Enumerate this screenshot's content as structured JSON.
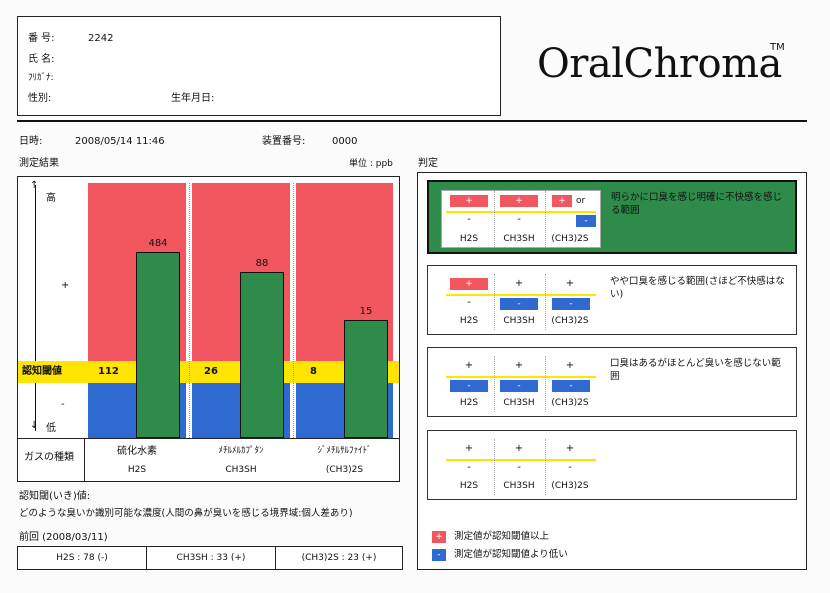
{
  "patient": {
    "id_label": "番 号:",
    "id_value": "2242",
    "name_label": "氏 名:",
    "furigana_label": "ﾌﾘｶﾞﾅ:",
    "sex_label": "性別:",
    "birth_label": "生年月日:"
  },
  "brand": {
    "name": "OralChroma",
    "tm": "TM"
  },
  "meta": {
    "datetime_label": "日時:",
    "datetime_value": "2008/05/14 11:46",
    "device_label": "装置番号:",
    "device_value": "0000"
  },
  "results": {
    "title": "測定結果",
    "unit": "単位 : ppb",
    "axis_high": "高",
    "axis_plus": "+",
    "axis_minus": "-",
    "axis_low": "低",
    "threshold_label": "認知閾値",
    "gas_type_label": "ガスの種類",
    "gases": [
      {
        "name_ja": "硫化水素",
        "name": "H2S",
        "threshold": 112,
        "value": 484
      },
      {
        "name_ja": "ﾒﾁﾙﾒﾙｶﾌﾟﾀﾝ",
        "name": "CH3SH",
        "threshold": 26,
        "value": 88
      },
      {
        "name_ja": "ｼﾞﾒﾁﾙｻﾙﾌｧｲﾄﾞ",
        "name": "(CH3)2S",
        "threshold": 8,
        "value": 15
      }
    ]
  },
  "chart_data": {
    "type": "bar",
    "categories": [
      "H2S",
      "CH3SH",
      "(CH3)2S"
    ],
    "series": [
      {
        "name": "",
        "values": [
          484,
          88,
          15
        ]
      }
    ],
    "thresholds": [
      112,
      26,
      8
    ],
    "title": "測定結果",
    "ylabel": "",
    "unit": "単位 : ppb",
    "grid": false
  },
  "note": {
    "title": "認知閾(いき)値:",
    "body": "どのような臭いか識別可能な濃度(人間の鼻が臭いを感じる境界域:個人差あり)"
  },
  "previous": {
    "title": "前回 (2008/03/11)",
    "items": [
      "H2S : 78 (-)",
      "CH3SH : 33 (+)",
      "(CH3)2S : 23 (+)"
    ]
  },
  "judgement": {
    "title": "判定",
    "plus": "+",
    "minus": "-",
    "or": "or",
    "gas_labels": [
      "H2S",
      "CH3SH",
      "(CH3)2S"
    ],
    "levels": [
      {
        "text": "明らかに口臭を感じ明確に不快感を感じる範囲",
        "pattern": [
          "+",
          "+",
          "+/-"
        ],
        "selected": true
      },
      {
        "text": "やや口臭を感じる範囲(さほど不快感はない)",
        "pattern": [
          "+",
          "-",
          "-"
        ],
        "selected": false
      },
      {
        "text": "口臭はあるがほとんど臭いを感じない範囲",
        "pattern": [
          "-",
          "-",
          "-"
        ],
        "selected": false
      },
      {
        "text": "",
        "pattern": [
          "",
          "",
          ""
        ],
        "selected": false
      }
    ],
    "legend": [
      {
        "symbol": "+",
        "text": "測定値が認知閾値以上",
        "color": "#f2575f"
      },
      {
        "symbol": "-",
        "text": "測定値が認知閾値より低い",
        "color": "#2f6ad1"
      }
    ]
  }
}
